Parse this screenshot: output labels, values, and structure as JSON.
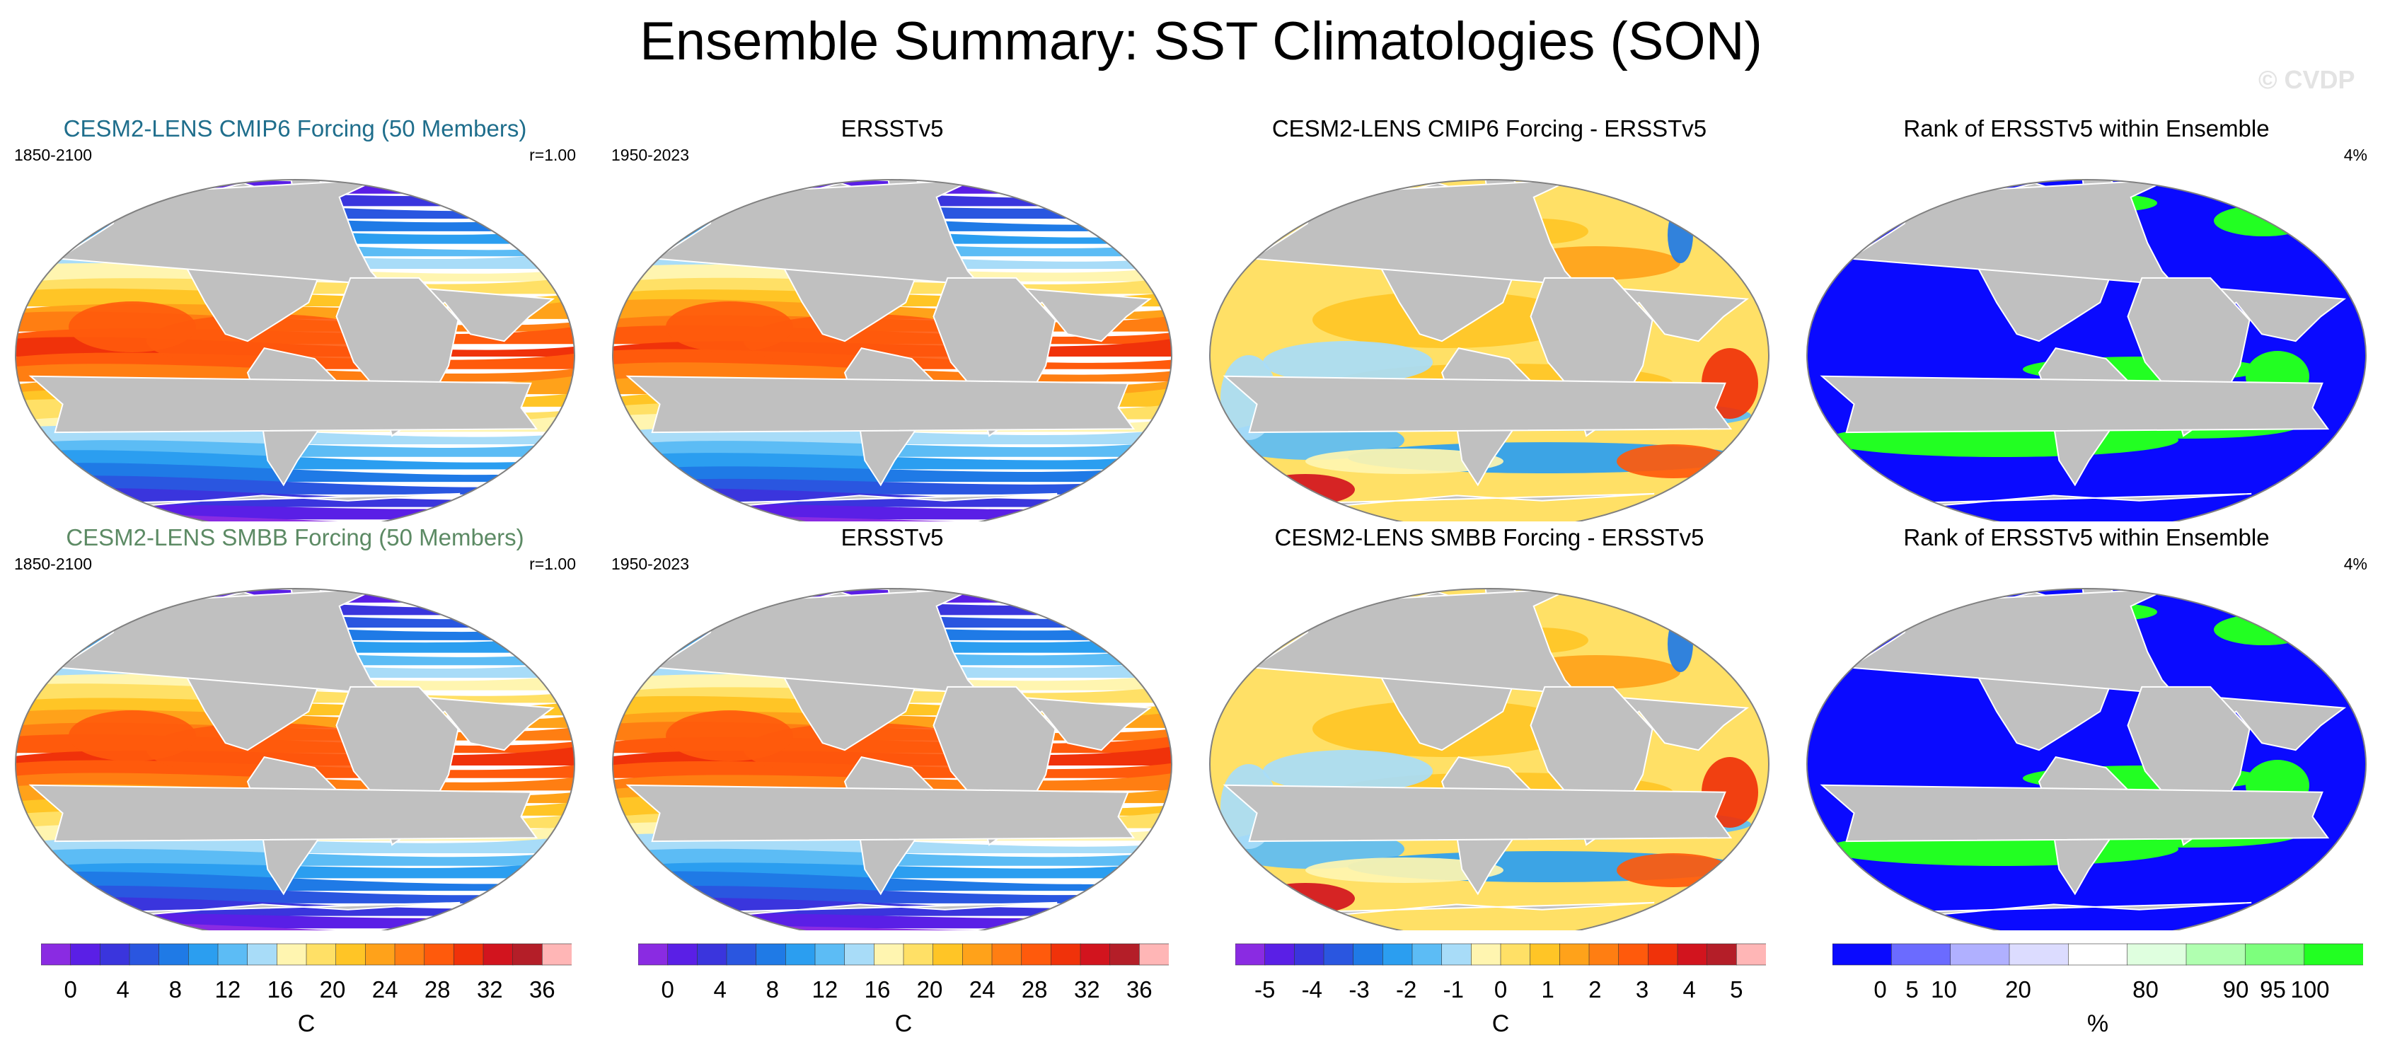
{
  "title": "Ensemble Summary: SST Climatologies (SON)",
  "watermark": "© CVDP",
  "colors": {
    "sst": [
      "#8a2be2",
      "#5a1fe6",
      "#3a35dd",
      "#2a56e0",
      "#1f7ae6",
      "#2b9ef0",
      "#5cbcf5",
      "#a8dcf8",
      "#fff5b0",
      "#ffe066",
      "#ffc526",
      "#ffa21a",
      "#ff7e12",
      "#ff5a0c",
      "#f0320a",
      "#d2141e",
      "#b41e28",
      "#ffb6b6"
    ],
    "diff": [
      "#8a2be2",
      "#5a1fe6",
      "#3a35dd",
      "#2a56e0",
      "#1f7ae6",
      "#2b9ef0",
      "#5cbcf5",
      "#a8dcf8",
      "#fff5b0",
      "#ffe066",
      "#ffc526",
      "#ffa21a",
      "#ff7e12",
      "#ff5a0c",
      "#f0320a",
      "#d2141e",
      "#b41e28",
      "#ffb6b6"
    ],
    "rank": [
      "#0a0aff",
      "#6b6bff",
      "#b0b0ff",
      "#dcdcff",
      "#ffffff",
      "#dfffdf",
      "#b0ffb0",
      "#7dff7d",
      "#22ff22"
    ],
    "land": "#c0c0c0",
    "title_row1": "#1f6e8c",
    "title_row2": "#5c8a64"
  },
  "rows": [
    {
      "panels": [
        {
          "kind": "sst",
          "title": "CESM2-LENS CMIP6 Forcing (50 Members)",
          "left": "1850-2100",
          "right": "r=1.00"
        },
        {
          "kind": "sst",
          "title": "ERSSTv5",
          "left": "1950-2023",
          "right": ""
        },
        {
          "kind": "diff",
          "title": "CESM2-LENS CMIP6 Forcing - ERSSTv5",
          "left": "",
          "right": ""
        },
        {
          "kind": "rank",
          "title": "Rank of ERSSTv5 within Ensemble",
          "left": "",
          "right": "4%"
        }
      ]
    },
    {
      "panels": [
        {
          "kind": "sst",
          "title": "CESM2-LENS SMBB Forcing (50 Members)",
          "left": "1850-2100",
          "right": "r=1.00"
        },
        {
          "kind": "sst",
          "title": "ERSSTv5",
          "left": "1950-2023",
          "right": ""
        },
        {
          "kind": "diff",
          "title": "CESM2-LENS SMBB Forcing - ERSSTv5",
          "left": "",
          "right": ""
        },
        {
          "kind": "rank",
          "title": "Rank of ERSSTv5 within Ensemble",
          "left": "",
          "right": "4%"
        }
      ]
    }
  ],
  "colorbars": [
    {
      "kind": "sst",
      "ticks": [
        "0",
        "4",
        "8",
        "12",
        "16",
        "20",
        "24",
        "28",
        "32",
        "36"
      ],
      "unit": "C"
    },
    {
      "kind": "sst",
      "ticks": [
        "0",
        "4",
        "8",
        "12",
        "16",
        "20",
        "24",
        "28",
        "32",
        "36"
      ],
      "unit": "C"
    },
    {
      "kind": "diff",
      "ticks": [
        "-5",
        "-4",
        "-3",
        "-2",
        "-1",
        "0",
        "1",
        "2",
        "3",
        "4",
        "5"
      ],
      "unit": "C"
    },
    {
      "kind": "rank",
      "ticks": [
        "0",
        "5",
        "10",
        "20",
        "80",
        "90",
        "95",
        "100"
      ],
      "unit": "%"
    }
  ]
}
